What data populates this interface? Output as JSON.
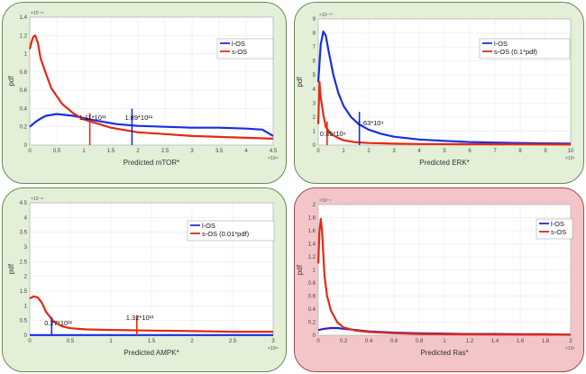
{
  "chart_data": [
    {
      "type": "line",
      "xlabel": "Predicted mTOR*",
      "ylabel": "pdf",
      "x_multiplier": "×10¹¹",
      "y_multiplier": "×10⁻¹¹",
      "xlim": [
        0,
        4.5
      ],
      "ylim": [
        0,
        1.4
      ],
      "xticks": [
        "0",
        "0.5",
        "1",
        "1.5",
        "2",
        "2.5",
        "3",
        "3.5",
        "4",
        "4.5"
      ],
      "yticks": [
        "0",
        "0.2",
        "0.4",
        "0.6",
        "0.8",
        "1",
        "1.2",
        "1.4"
      ],
      "legend_position": "top-right",
      "series": [
        {
          "name": "l-OS",
          "color": "#1a2ee0",
          "x": [
            0,
            0.1,
            0.2,
            0.3,
            0.5,
            0.8,
            1.2,
            1.6,
            2,
            2.5,
            3,
            3.5,
            4,
            4.3,
            4.5
          ],
          "y": [
            0.2,
            0.25,
            0.29,
            0.32,
            0.34,
            0.32,
            0.27,
            0.23,
            0.21,
            0.2,
            0.19,
            0.19,
            0.18,
            0.17,
            0.1
          ]
        },
        {
          "name": "s-OS",
          "color": "#e42a12",
          "x": [
            0,
            0.03,
            0.06,
            0.1,
            0.15,
            0.2,
            0.3,
            0.4,
            0.6,
            0.8,
            1,
            1.5,
            2,
            2.5,
            3,
            3.5,
            4,
            4.5
          ],
          "y": [
            1.05,
            1.12,
            1.18,
            1.2,
            1.12,
            0.95,
            0.78,
            0.62,
            0.45,
            0.35,
            0.28,
            0.19,
            0.14,
            0.12,
            0.1,
            0.09,
            0.08,
            0.07
          ]
        }
      ],
      "markers": [
        {
          "x": 1.11,
          "y0": 0,
          "y1": 0.23,
          "color": "#e42a12",
          "label": "1.11*10¹¹"
        },
        {
          "x": 1.89,
          "y0": 0,
          "y1": 0.28,
          "color": "#1a2ee0",
          "label": "1.89*10¹¹"
        }
      ]
    },
    {
      "type": "line",
      "xlabel": "Predicted ERK*",
      "ylabel": "pdf",
      "x_multiplier": "×10⁹",
      "y_multiplier": "×10⁻¹⁰",
      "xlim": [
        0,
        10
      ],
      "ylim": [
        0,
        9
      ],
      "xticks": [
        "0",
        "1",
        "2",
        "3",
        "4",
        "5",
        "6",
        "7",
        "8",
        "9",
        "10"
      ],
      "yticks": [
        "0",
        "1",
        "2",
        "3",
        "4",
        "5",
        "6",
        "7",
        "8",
        "9"
      ],
      "legend_position": "top-right",
      "series": [
        {
          "name": "l-OS",
          "color": "#1a2ee0",
          "x": [
            0,
            0.1,
            0.2,
            0.3,
            0.4,
            0.6,
            0.8,
            1,
            1.3,
            1.6,
            2,
            2.5,
            3,
            4,
            5,
            6,
            7,
            8,
            9,
            10
          ],
          "y": [
            4.5,
            7.2,
            8.1,
            7.8,
            6.8,
            5,
            3.7,
            2.8,
            2,
            1.5,
            1.1,
            0.8,
            0.6,
            0.4,
            0.3,
            0.22,
            0.18,
            0.15,
            0.12,
            0.1
          ]
        },
        {
          "name": "s-OS (0.1*pdf)",
          "color": "#e42a12",
          "x": [
            0,
            0.05,
            0.1,
            0.2,
            0.3,
            0.5,
            0.8,
            1,
            1.5,
            2,
            3,
            4,
            6,
            8,
            10
          ],
          "y": [
            1.5,
            4.5,
            3.4,
            2.2,
            1.3,
            0.8,
            0.5,
            0.35,
            0.2,
            0.15,
            0.1,
            0.08,
            0.06,
            0.05,
            0.04
          ]
        }
      ],
      "markers": [
        {
          "x": 0.35,
          "y0": 0,
          "y1": 0.9,
          "color": "#e42a12",
          "label": "0.35*10⁹"
        },
        {
          "x": 1.63,
          "y0": 0,
          "y1": 1.6,
          "color": "#1a2ee0",
          "label": "1.63*10⁹"
        }
      ]
    },
    {
      "type": "line",
      "xlabel": "Predicted AMPK*",
      "ylabel": "pdf",
      "x_multiplier": "×10¹¹",
      "y_multiplier": "×10⁻¹¹",
      "xlim": [
        0,
        3
      ],
      "ylim": [
        0,
        4.5
      ],
      "xticks": [
        "0",
        "0.5",
        "1",
        "1.5",
        "2",
        "2.5",
        "3"
      ],
      "yticks": [
        "0",
        "0.5",
        "1",
        "1.5",
        "2",
        "2.5",
        "3",
        "3.5",
        "4",
        "4.5"
      ],
      "legend_position": "top-right",
      "series": [
        {
          "name": "l-OS",
          "color": "#1a2ee0",
          "x": [
            0,
            3
          ],
          "y": [
            0.005,
            0.005
          ]
        },
        {
          "name": "s-OS (0.01*pdf)",
          "color": "#e42a12",
          "x": [
            0,
            0.05,
            0.1,
            0.15,
            0.2,
            0.3,
            0.4,
            0.5,
            0.7,
            1,
            1.5,
            2,
            2.5,
            3
          ],
          "y": [
            1.25,
            1.32,
            1.28,
            1.1,
            0.8,
            0.45,
            0.3,
            0.24,
            0.2,
            0.18,
            0.16,
            0.14,
            0.12,
            0.12
          ]
        }
      ],
      "markers": [
        {
          "x": 0.27,
          "y0": 0,
          "y1": 0.25,
          "color": "#1a2ee0",
          "label": "0.27*10¹¹"
        },
        {
          "x": 1.32,
          "y0": 0,
          "y1": 0.3,
          "color": "#e42a12",
          "label": "1.32*10¹¹"
        }
      ]
    },
    {
      "type": "line",
      "xlabel": "Predicted Ras*",
      "ylabel": "pdf",
      "x_multiplier": "×10⁶",
      "y_multiplier": "×10⁻⁵",
      "xlim": [
        0,
        2
      ],
      "ylim": [
        0,
        2
      ],
      "xticks": [
        "0",
        "0.2",
        "0.4",
        "0.6",
        "0.8",
        "1",
        "1.2",
        "1.4",
        "1.6",
        "1.8",
        "2"
      ],
      "yticks": [
        "0",
        "0.2",
        "0.4",
        "0.6",
        "0.8",
        "1",
        "1.2",
        "1.4",
        "1.6",
        "1.8",
        "2"
      ],
      "legend_position": "top-right",
      "series": [
        {
          "name": "l-OS",
          "color": "#3a1ad0",
          "x": [
            0,
            0.05,
            0.1,
            0.15,
            0.2,
            0.3,
            0.4,
            0.6,
            0.8,
            1,
            1.2,
            1.4,
            1.6,
            1.8,
            2
          ],
          "y": [
            0.08,
            0.1,
            0.11,
            0.11,
            0.1,
            0.08,
            0.06,
            0.04,
            0.03,
            0.025,
            0.02,
            0.02,
            0.015,
            0.015,
            0.01
          ]
        },
        {
          "name": "s-OS",
          "color": "#e42a12",
          "x": [
            0,
            0.01,
            0.02,
            0.03,
            0.04,
            0.05,
            0.07,
            0.1,
            0.15,
            0.2,
            0.3,
            0.4,
            0.6,
            0.8,
            1,
            1.5,
            2
          ],
          "y": [
            1.1,
            1.6,
            1.78,
            1.6,
            1.25,
            0.9,
            0.6,
            0.38,
            0.2,
            0.12,
            0.07,
            0.05,
            0.03,
            0.02,
            0.015,
            0.01,
            0.008
          ]
        }
      ],
      "markers": []
    }
  ]
}
